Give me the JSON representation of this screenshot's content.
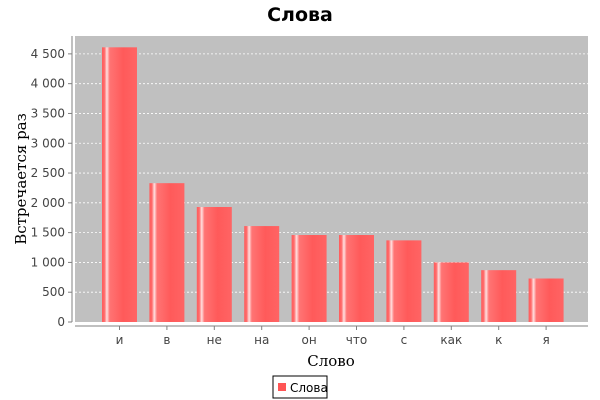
{
  "chart_data": {
    "type": "bar",
    "title": "Слова",
    "xlabel": "Слово",
    "ylabel": "Встречается раз",
    "categories": [
      "и",
      "в",
      "не",
      "на",
      "он",
      "что",
      "с",
      "как",
      "к",
      "я"
    ],
    "series": [
      {
        "name": "Слова",
        "values": [
          4610,
          2330,
          1930,
          1610,
          1460,
          1460,
          1370,
          1000,
          870,
          730
        ]
      }
    ],
    "ylim": [
      0,
      4800
    ],
    "yticks": [
      0,
      500,
      1000,
      1500,
      2000,
      2500,
      3000,
      3500,
      4000,
      4500
    ],
    "ytick_labels": [
      "0",
      "500",
      "1 000",
      "1 500",
      "2 000",
      "2 500",
      "3 000",
      "3 500",
      "4 000",
      "4 500"
    ],
    "grid": true,
    "legend_position": "bottom-center",
    "colors": {
      "bar": "#ff5555",
      "bar_light": "#ff8a8a",
      "bar_highlight": "#ffd6d6",
      "plot_background": "#c0c0c0",
      "grid": "#ffffff",
      "axis": "#808080"
    }
  }
}
